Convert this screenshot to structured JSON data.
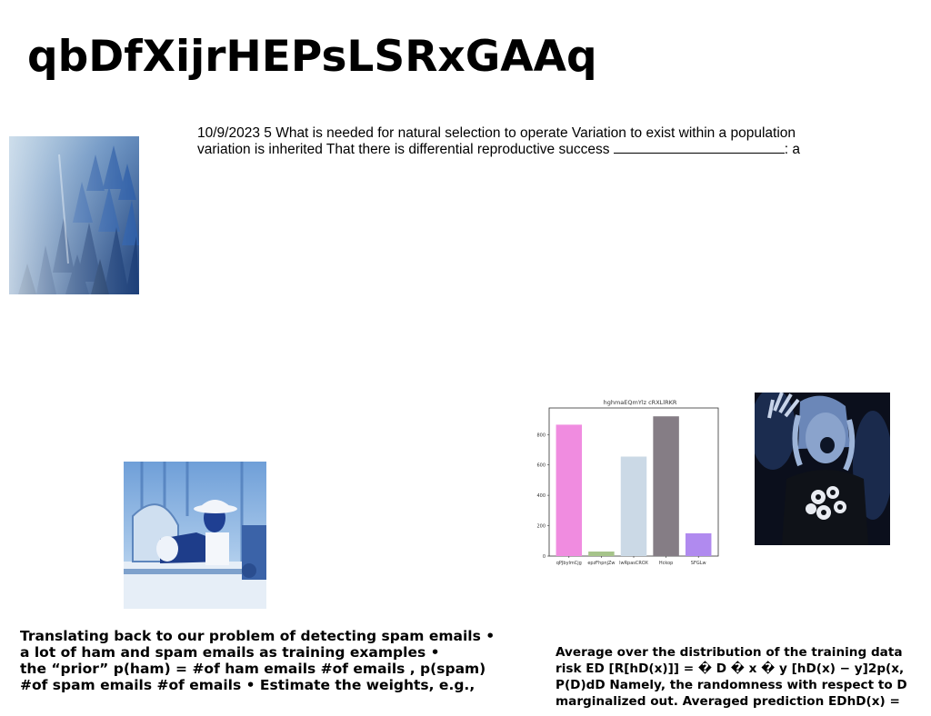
{
  "title": "qbDfXijrHEPsLSRxGAAq",
  "paragraph_top": {
    "text": "10/9/2023 5 What is needed for natural selection to operate Variation to exist within a population variation is inherited That there is differential reproductive success",
    "tail": ": a"
  },
  "paragraph_bottom_left": {
    "lines": [
      "Translating back to our problem of detecting spam emails •",
      "a lot of ham and spam emails as training examples •",
      "the “prior” p(ham) = #of ham emails #of emails , p(spam)",
      "#of spam emails #of emails • Estimate the weights, e.g.,"
    ]
  },
  "paragraph_bottom_right": {
    "lines": [
      "Average over the distribution of the training data",
      "risk ED [R[hD(x)]] = � D � x � y [hD(x) − y]2p(x,",
      "P(D)dD Namely, the randomness with respect to D",
      "marginalized out. Averaged prediction EDhD(x) ="
    ]
  },
  "images": {
    "forest": "misty blue forest photo",
    "man": "blue-tinted photo of man in hat",
    "concert": "blue-tinted concert crowd photo"
  },
  "chart_data": {
    "type": "bar",
    "title": "hghmaEQmYlz cRXLlRKR",
    "categories": [
      "qPJbylmCjg",
      "epzFhpnjZw",
      "lwRpasCROX",
      "Hckop",
      "SFGLw"
    ],
    "values": [
      865,
      30,
      655,
      920,
      150
    ],
    "colors": [
      "#f08ce0",
      "#a6c48a",
      "#cbd9e6",
      "#857d85",
      "#b08aef"
    ],
    "ylim": [
      0,
      975
    ],
    "yticks": [
      0,
      200,
      400,
      600,
      800
    ],
    "xlabel": "",
    "ylabel": "",
    "grid": false
  }
}
